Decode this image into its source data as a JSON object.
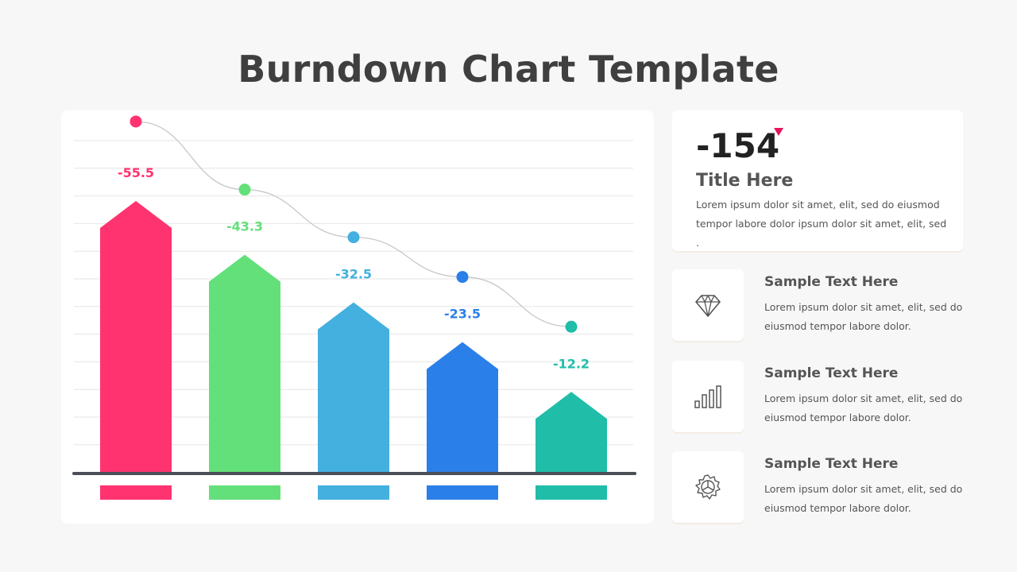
{
  "title": "Burndown Chart Template",
  "colors": {
    "pink": "#ff3370",
    "green": "#63e07a",
    "sky": "#43b0e0",
    "blue": "#2b7fe8",
    "teal": "#20bda9",
    "axis": "#4a4f57",
    "arrow": "#e5145c"
  },
  "chart_data": {
    "type": "bar",
    "title": "",
    "xlabel": "",
    "ylabel": "",
    "ylim": [
      0,
      60
    ],
    "grid": true,
    "legend": "none",
    "categories": [
      "",
      "",
      "",
      "",
      ""
    ],
    "values": [
      -55.5,
      -43.3,
      -32.5,
      -23.5,
      -12.2
    ],
    "value_labels": [
      "-55.5",
      "-43.3",
      "-32.5",
      "-23.5",
      "-12.2"
    ],
    "bar_colors": [
      "#ff3370",
      "#63e07a",
      "#43b0e0",
      "#2b7fe8",
      "#20bda9"
    ],
    "overlay": "smooth trend line with a dot above each bar"
  },
  "summary": {
    "value": "-154",
    "title": "Title Here",
    "description": "Lorem ipsum dolor sit amet, elit, sed do eiusmod tempor labore dolor ipsum dolor sit amet, elit, sed ."
  },
  "features": [
    {
      "icon": "diamond-icon",
      "title": "Sample Text Here",
      "description": "Lorem ipsum dolor sit amet, elit, sed do eiusmod tempor labore dolor."
    },
    {
      "icon": "bar-chart-icon",
      "title": "Sample Text Here",
      "description": "Lorem ipsum dolor sit amet, elit, sed do eiusmod tempor labore dolor."
    },
    {
      "icon": "gear-icon",
      "title": "Sample Text Here",
      "description": "Lorem ipsum dolor sit amet, elit, sed do eiusmod tempor labore dolor."
    }
  ]
}
